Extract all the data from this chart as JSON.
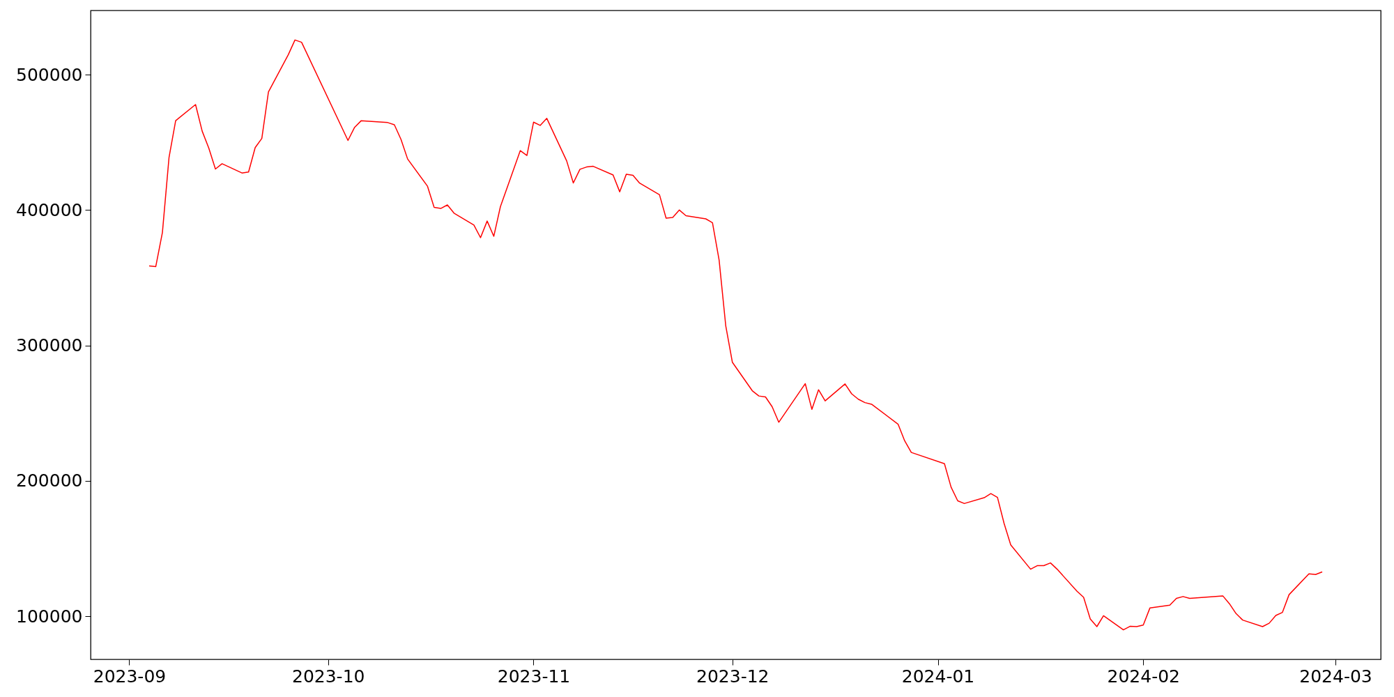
{
  "chart_data": {
    "type": "line",
    "x": [
      "2023-09-04",
      "2023-09-05",
      "2023-09-06",
      "2023-09-07",
      "2023-09-08",
      "2023-09-11",
      "2023-09-12",
      "2023-09-13",
      "2023-09-14",
      "2023-09-15",
      "2023-09-18",
      "2023-09-19",
      "2023-09-20",
      "2023-09-21",
      "2023-09-22",
      "2023-09-25",
      "2023-09-26",
      "2023-09-27",
      "2023-10-04",
      "2023-10-05",
      "2023-10-06",
      "2023-10-10",
      "2023-10-11",
      "2023-10-12",
      "2023-10-13",
      "2023-10-16",
      "2023-10-17",
      "2023-10-18",
      "2023-10-19",
      "2023-10-20",
      "2023-10-23",
      "2023-10-24",
      "2023-10-25",
      "2023-10-26",
      "2023-10-27",
      "2023-10-30",
      "2023-10-31",
      "2023-11-01",
      "2023-11-02",
      "2023-11-03",
      "2023-11-06",
      "2023-11-07",
      "2023-11-08",
      "2023-11-09",
      "2023-11-10",
      "2023-11-13",
      "2023-11-14",
      "2023-11-15",
      "2023-11-16",
      "2023-11-17",
      "2023-11-20",
      "2023-11-21",
      "2023-11-22",
      "2023-11-23",
      "2023-11-24",
      "2023-11-27",
      "2023-11-28",
      "2023-11-29",
      "2023-11-30",
      "2023-12-01",
      "2023-12-04",
      "2023-12-05",
      "2023-12-06",
      "2023-12-07",
      "2023-12-08",
      "2023-12-12",
      "2023-12-13",
      "2023-12-14",
      "2023-12-15",
      "2023-12-18",
      "2023-12-19",
      "2023-12-20",
      "2023-12-21",
      "2023-12-22",
      "2023-12-26",
      "2023-12-27",
      "2023-12-28",
      "2024-01-02",
      "2024-01-03",
      "2024-01-04",
      "2024-01-05",
      "2024-01-08",
      "2024-01-09",
      "2024-01-10",
      "2024-01-11",
      "2024-01-12",
      "2024-01-15",
      "2024-01-16",
      "2024-01-17",
      "2024-01-18",
      "2024-01-19",
      "2024-01-22",
      "2024-01-23",
      "2024-01-24",
      "2024-01-25",
      "2024-01-26",
      "2024-01-29",
      "2024-01-30",
      "2024-01-31",
      "2024-02-01",
      "2024-02-02",
      "2024-02-05",
      "2024-02-06",
      "2024-02-07",
      "2024-02-08",
      "2024-02-13",
      "2024-02-14",
      "2024-02-15",
      "2024-02-16",
      "2024-02-19",
      "2024-02-20",
      "2024-02-21",
      "2024-02-22",
      "2024-02-23",
      "2024-02-26",
      "2024-02-27",
      "2024-02-28"
    ],
    "series": [
      {
        "color": "#ff0000",
        "values": [
          358800,
          358300,
          383400,
          438900,
          466000,
          477900,
          458300,
          445700,
          430300,
          434200,
          427400,
          428100,
          446100,
          452900,
          487200,
          514800,
          525600,
          523900,
          451400,
          461100,
          466000,
          464600,
          463000,
          452200,
          437700,
          417600,
          402000,
          401200,
          403800,
          397700,
          388900,
          379600,
          391900,
          380600,
          402500,
          443900,
          440300,
          464900,
          462500,
          467700,
          436300,
          420000,
          430100,
          431800,
          432300,
          425900,
          413500,
          426500,
          425700,
          419900,
          411300,
          394000,
          394500,
          400000,
          395800,
          393500,
          390600,
          363100,
          314600,
          287600,
          266600,
          262700,
          262000,
          254800,
          243300,
          271800,
          252800,
          267300,
          259100,
          271600,
          264300,
          260300,
          257800,
          256600,
          241900,
          229600,
          221000,
          212700,
          195400,
          185300,
          183300,
          187600,
          190600,
          187800,
          168600,
          152700,
          134800,
          137400,
          137400,
          139400,
          134800,
          118500,
          114000,
          98100,
          92400,
          100400,
          90000,
          92600,
          92400,
          93500,
          106100,
          108200,
          113200,
          114600,
          113200,
          115100,
          109300,
          102000,
          97200,
          92400,
          94900,
          100600,
          102900,
          116000,
          131400,
          130900,
          132800
        ]
      }
    ],
    "xlim": [
      "2023-08-26T04:00",
      "2024-03-07T20:00"
    ],
    "xticks": [
      "2023-09",
      "2023-10",
      "2023-11",
      "2023-12",
      "2024-01",
      "2024-02",
      "2024-03"
    ],
    "ylim": [
      68200,
      547400
    ],
    "yticks": [
      100000,
      200000,
      300000,
      400000,
      500000
    ],
    "grid": false,
    "marker": "none",
    "line_style": "solid"
  }
}
